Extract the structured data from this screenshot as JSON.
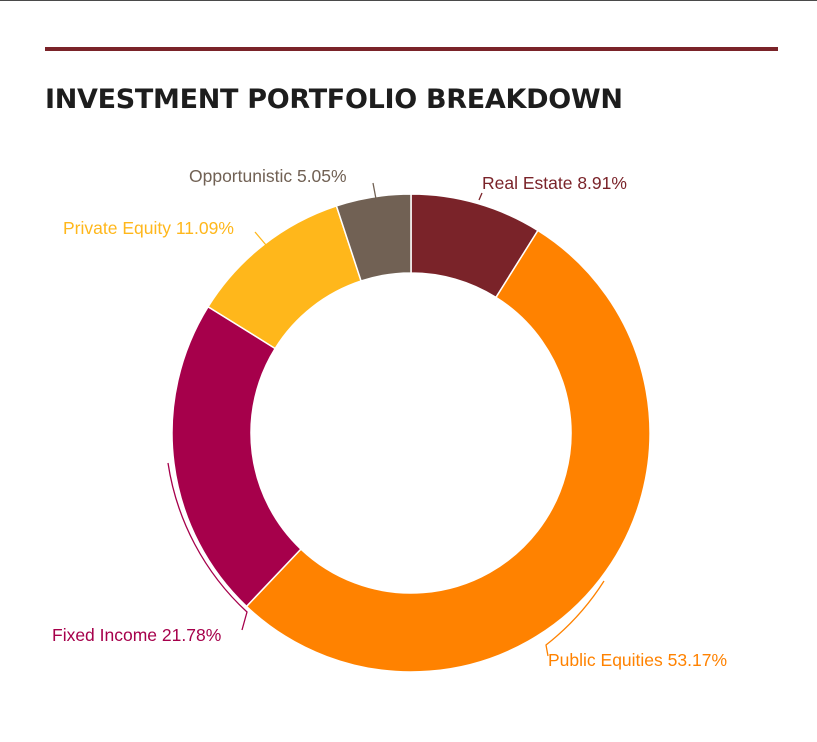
{
  "page": {
    "title": "INVESTMENT PORTFOLIO BREAKDOWN"
  },
  "colors": {
    "accent_rule": "#7a2329",
    "title_text": "#1d1d1d",
    "slice_border": "#ffffff"
  },
  "chart_data": {
    "type": "pie",
    "style": "donut",
    "unit": "%",
    "categories": [
      "Real Estate",
      "Public Equities",
      "Fixed Income",
      "Private Equity",
      "Opportunistic"
    ],
    "values": [
      8.91,
      53.17,
      21.78,
      11.09,
      5.05
    ],
    "colors": [
      "#7a2329",
      "#ff8200",
      "#a6004b",
      "#ffb71b",
      "#716154"
    ],
    "labels": [
      "Real Estate 8.91%",
      "Public Equities 53.17%",
      "Fixed Income 21.78%",
      "Private Equity 11.09%",
      "Opportunistic 5.05%"
    ],
    "start_angle_deg": 0,
    "direction": "clockwise",
    "legend": "none"
  }
}
